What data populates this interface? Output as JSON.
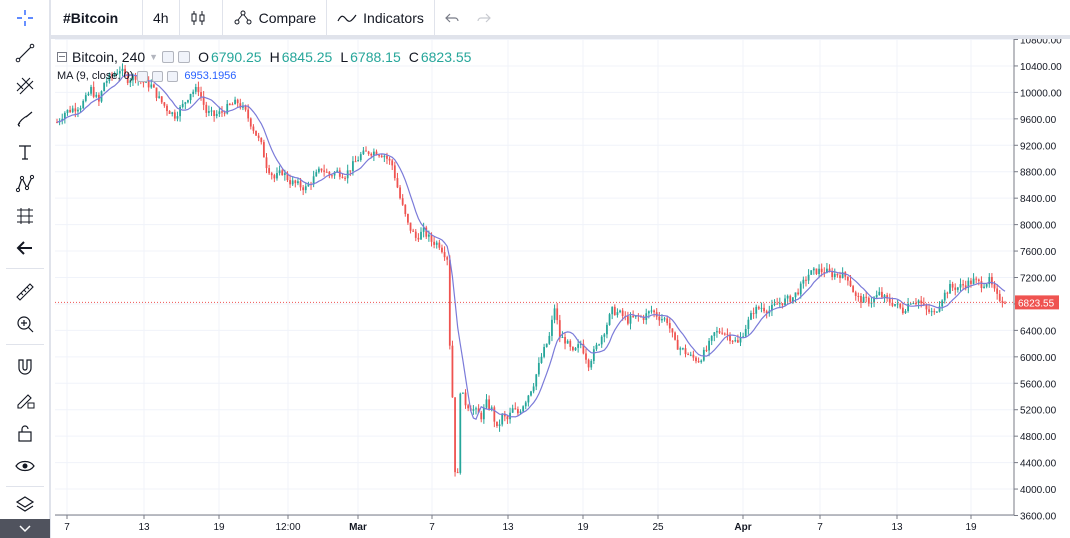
{
  "toolbar": {
    "symbol": "#Bitcoin",
    "interval": "4h",
    "compare_label": "Compare",
    "indicators_label": "Indicators"
  },
  "left_tools": [
    "crosshair-icon",
    "trend-line-icon",
    "fib-icon",
    "brush-icon",
    "text-icon",
    "pattern-icon",
    "prediction-icon",
    "back-arrow-icon",
    "ruler-icon",
    "zoom-in-icon",
    "magnet-icon",
    "lock-drawing-icon",
    "unlock-icon",
    "eye-icon",
    "layers-icon"
  ],
  "legend": {
    "title": "Bitcoin, 240",
    "o_key": "O",
    "o_val": "6790.25",
    "h_key": "H",
    "h_val": "6845.25",
    "l_key": "L",
    "l_val": "6788.15",
    "c_key": "C",
    "c_val": "6823.55",
    "ma_label": "MA (9, close, 0)",
    "ma_value": "6953.1956"
  },
  "colors": {
    "up": "#26a69a",
    "down": "#ef5350",
    "ma": "#7b7bd9",
    "price_line": "#ef5350",
    "grid": "#f0f3fa"
  },
  "chart_data": {
    "type": "candlestick",
    "ylim": [
      3600,
      10800
    ],
    "y_ticks": [
      "10800.00",
      "10400.00",
      "10000.00",
      "9600.00",
      "9200.00",
      "8800.00",
      "8400.00",
      "8000.00",
      "7600.00",
      "7200.00",
      "6800.00",
      "6400.00",
      "6000.00",
      "5600.00",
      "5200.00",
      "4800.00",
      "4400.00",
      "4000.00",
      "3600.00"
    ],
    "x_ticks": [
      "7",
      "13",
      "19",
      "12:00",
      "Mar",
      "7",
      "13",
      "19",
      "25",
      "Apr",
      "7",
      "13",
      "19"
    ],
    "last_price": "6823.55",
    "price_path": [
      [
        0,
        9550
      ],
      [
        3,
        9700
      ],
      [
        6,
        9750
      ],
      [
        9,
        9800
      ],
      [
        11,
        9900
      ],
      [
        13,
        10050
      ],
      [
        16,
        9850
      ],
      [
        18,
        10150
      ],
      [
        21,
        10250
      ],
      [
        24,
        10350
      ],
      [
        27,
        10200
      ],
      [
        30,
        10250
      ],
      [
        33,
        10150
      ],
      [
        36,
        10100
      ],
      [
        39,
        9900
      ],
      [
        42,
        9750
      ],
      [
        45,
        9650
      ],
      [
        48,
        9800
      ],
      [
        51,
        10000
      ],
      [
        54,
        10050
      ],
      [
        57,
        9700
      ],
      [
        60,
        9650
      ],
      [
        63,
        9700
      ],
      [
        66,
        9800
      ],
      [
        69,
        9850
      ],
      [
        72,
        9700
      ],
      [
        75,
        9450
      ],
      [
        78,
        9200
      ],
      [
        80,
        8900
      ],
      [
        83,
        8700
      ],
      [
        86,
        8800
      ],
      [
        89,
        8650
      ],
      [
        92,
        8600
      ],
      [
        95,
        8550
      ],
      [
        98,
        8700
      ],
      [
        101,
        8850
      ],
      [
        104,
        8750
      ],
      [
        107,
        8800
      ],
      [
        110,
        8750
      ],
      [
        113,
        8900
      ],
      [
        116,
        9050
      ],
      [
        119,
        9100
      ],
      [
        122,
        9100
      ],
      [
        125,
        9050
      ],
      [
        128,
        8900
      ],
      [
        131,
        8400
      ],
      [
        134,
        8000
      ],
      [
        137,
        7800
      ],
      [
        140,
        7900
      ],
      [
        143,
        7750
      ],
      [
        146,
        7700
      ],
      [
        149,
        7500
      ],
      [
        150,
        6200
      ],
      [
        151,
        5400
      ],
      [
        152,
        4300
      ],
      [
        153,
        4200
      ],
      [
        154,
        5500
      ],
      [
        156,
        5300
      ],
      [
        159,
        5200
      ],
      [
        162,
        5100
      ],
      [
        164,
        5300
      ],
      [
        166,
        5200
      ],
      [
        168,
        4900
      ],
      [
        170,
        5100
      ],
      [
        172,
        5050
      ],
      [
        174,
        5200
      ],
      [
        176,
        5150
      ],
      [
        179,
        5350
      ],
      [
        182,
        5600
      ],
      [
        185,
        6000
      ],
      [
        188,
        6300
      ],
      [
        190,
        6750
      ],
      [
        192,
        6300
      ],
      [
        194,
        6250
      ],
      [
        197,
        6050
      ],
      [
        200,
        6200
      ],
      [
        203,
        5900
      ],
      [
        206,
        6150
      ],
      [
        209,
        6400
      ],
      [
        212,
        6700
      ],
      [
        215,
        6650
      ],
      [
        218,
        6550
      ],
      [
        221,
        6600
      ],
      [
        224,
        6600
      ],
      [
        227,
        6700
      ],
      [
        230,
        6600
      ],
      [
        233,
        6550
      ],
      [
        236,
        6200
      ],
      [
        239,
        6100
      ],
      [
        242,
        6000
      ],
      [
        245,
        5950
      ],
      [
        248,
        6100
      ],
      [
        251,
        6350
      ],
      [
        254,
        6400
      ],
      [
        257,
        6300
      ],
      [
        260,
        6200
      ],
      [
        263,
        6450
      ],
      [
        266,
        6700
      ],
      [
        269,
        6750
      ],
      [
        272,
        6700
      ],
      [
        275,
        6800
      ],
      [
        278,
        6850
      ],
      [
        281,
        6900
      ],
      [
        284,
        7050
      ],
      [
        287,
        7250
      ],
      [
        290,
        7300
      ],
      [
        293,
        7300
      ],
      [
        296,
        7250
      ],
      [
        299,
        7250
      ],
      [
        302,
        7200
      ],
      [
        305,
        6900
      ],
      [
        308,
        6850
      ],
      [
        311,
        6850
      ],
      [
        314,
        6950
      ],
      [
        317,
        6850
      ],
      [
        320,
        6800
      ],
      [
        323,
        6700
      ],
      [
        326,
        6850
      ],
      [
        329,
        6850
      ],
      [
        332,
        6700
      ],
      [
        335,
        6650
      ],
      [
        338,
        6900
      ],
      [
        341,
        7050
      ],
      [
        344,
        7050
      ],
      [
        347,
        7100
      ],
      [
        350,
        7150
      ],
      [
        353,
        7100
      ],
      [
        356,
        7150
      ],
      [
        359,
        6900
      ],
      [
        362,
        6850
      ]
    ]
  }
}
